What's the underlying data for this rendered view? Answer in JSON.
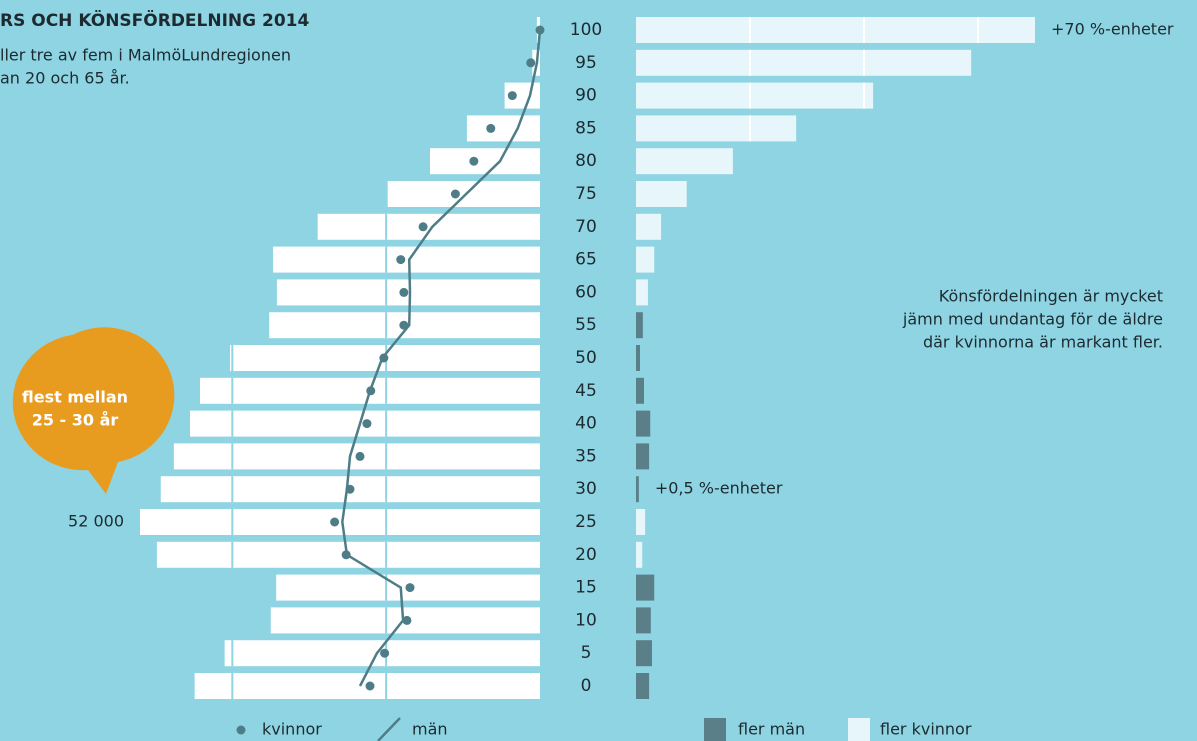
{
  "chart_data": [
    {
      "type": "pyramid",
      "title": "RS OCH KÖNSFÖRDELNING 2014",
      "subtitle": [
        "ller tre av fem i MalmöLundregionen",
        "an 20 och 65 år."
      ],
      "callout": [
        "flest mellan",
        "25 - 30 år"
      ],
      "categories": [
        "100",
        "95",
        "90",
        "85",
        "80",
        "75",
        "70",
        "65",
        "60",
        "55",
        "50",
        "45",
        "40",
        "35",
        "30",
        "25",
        "20",
        "15",
        "10",
        "5",
        "0"
      ],
      "xlim": [
        0,
        52000
      ],
      "xticks": [
        20000,
        40000
      ],
      "series": [
        {
          "color": "#ffffff",
          "values": [
            400,
            1000,
            4600,
            9500,
            14300,
            19800,
            28900,
            34700,
            34200,
            35200,
            40300,
            44200,
            45500,
            47600,
            49300,
            52000,
            49800,
            34300,
            35000,
            41000,
            44900
          ],
          "value_labels": [
            null,
            null,
            null,
            null,
            null,
            null,
            null,
            null,
            null,
            null,
            null,
            null,
            null,
            null,
            null,
            "52 000",
            null,
            null,
            null,
            null,
            null
          ]
        },
        {
          "name": "kvinnor",
          "color": "#4f7d87",
          "values": [
            0,
            1200,
            3600,
            6400,
            8600,
            11000,
            15200,
            18100,
            17700,
            17700,
            20300,
            22000,
            22500,
            23400,
            24700,
            26700,
            25200,
            16900,
            17300,
            20200,
            22100
          ]
        },
        {
          "name": "män",
          "color": "#4f7d87",
          "values": [
            0,
            400,
            1300,
            2900,
            5200,
            9600,
            14000,
            17000,
            16900,
            17000,
            20500,
            22100,
            23400,
            24700,
            25100,
            25700,
            25100,
            18100,
            17800,
            21200,
            23400
          ]
        }
      ]
    },
    {
      "type": "bar",
      "note": [
        "Könsfördelningen är mycket",
        "jämn med undantag för de äldre",
        "där kvinnorna är markant fler."
      ],
      "xlim": [
        0,
        70
      ],
      "xticks": [
        20,
        40,
        60
      ],
      "series": [
        {
          "name": "fler män",
          "color": "#5b7f89",
          "values": [
            null,
            null,
            null,
            null,
            null,
            null,
            null,
            null,
            null,
            1.2,
            0.7,
            1.4,
            2.5,
            2.3,
            0.5,
            null,
            null,
            3.2,
            2.6,
            2.8,
            2.3
          ],
          "value_labels": [
            null,
            null,
            null,
            null,
            null,
            null,
            null,
            null,
            null,
            null,
            null,
            null,
            null,
            null,
            "+0,5 %-enheter",
            null,
            null,
            null,
            null,
            null,
            null
          ]
        },
        {
          "name": "fler kvinnor",
          "color": "#e6f6fa",
          "values": [
            70,
            58.8,
            41.6,
            28.1,
            17,
            8.9,
            4.4,
            3.2,
            2.1,
            null,
            null,
            null,
            null,
            null,
            null,
            1.6,
            1.1,
            null,
            null,
            null,
            null
          ],
          "value_labels": [
            "+70 %-enheter",
            null,
            null,
            null,
            null,
            null,
            null,
            null,
            null,
            null,
            null,
            null,
            null,
            null,
            null,
            null,
            null,
            null,
            null,
            null,
            null
          ]
        }
      ]
    }
  ]
}
